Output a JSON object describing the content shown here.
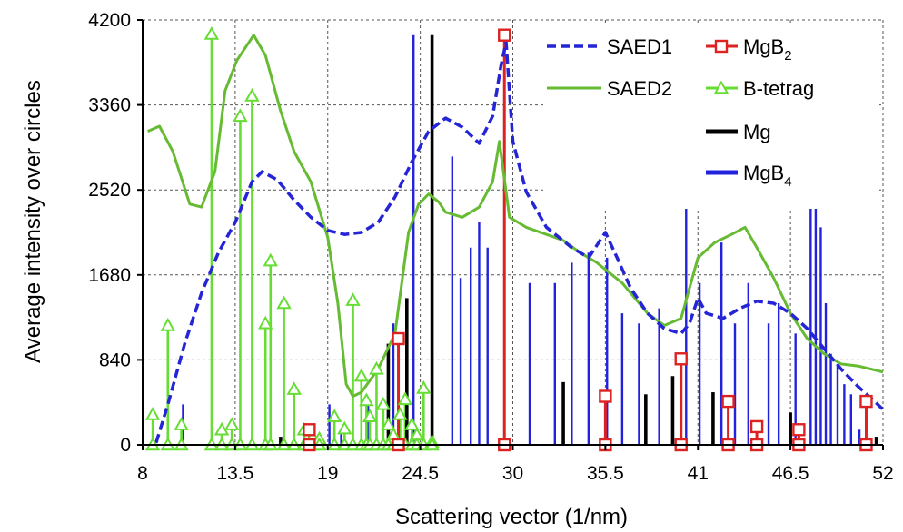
{
  "chart_data": {
    "type": "line",
    "xlabel": "Scattering vector  (1/nm)",
    "ylabel": "Average intensity over circles",
    "xlim": [
      8,
      52
    ],
    "ylim": [
      0,
      4200
    ],
    "xticks": [
      8,
      13.5,
      19,
      24.5,
      30,
      35.5,
      41,
      46.5,
      52
    ],
    "yticks": [
      0,
      840,
      1680,
      2520,
      3360,
      4200
    ],
    "grid": true,
    "legend_position": "top-right",
    "legend_left": [
      {
        "id": "saed1",
        "label": "SAED1"
      },
      {
        "id": "saed2",
        "label": "SAED2"
      }
    ],
    "legend_right": [
      {
        "id": "mgb2",
        "label_main": "MgB",
        "label_sub": "2"
      },
      {
        "id": "btet",
        "label_main": "B-tetrag",
        "label_sub": ""
      },
      {
        "id": "mg",
        "label_main": "Mg",
        "label_sub": ""
      },
      {
        "id": "mgb4",
        "label_main": "MgB",
        "label_sub": "4"
      }
    ],
    "colors": {
      "saed1": "#2525d6",
      "saed2": "#66bb33",
      "mgb2": "#dd2222",
      "btet": "#66dd33",
      "mg": "#000000",
      "mgb4": "#2222dd",
      "grid": "#555555"
    },
    "series": [
      {
        "id": "saed1",
        "style": "dashed-line",
        "points": [
          [
            8.8,
            20
          ],
          [
            9.5,
            400
          ],
          [
            10.5,
            1000
          ],
          [
            11.5,
            1500
          ],
          [
            12.5,
            1900
          ],
          [
            13.5,
            2200
          ],
          [
            14.5,
            2600
          ],
          [
            15.1,
            2700
          ],
          [
            16,
            2620
          ],
          [
            17,
            2420
          ],
          [
            18,
            2250
          ],
          [
            19,
            2120
          ],
          [
            20,
            2080
          ],
          [
            21,
            2100
          ],
          [
            22,
            2200
          ],
          [
            23,
            2450
          ],
          [
            24,
            2800
          ],
          [
            25,
            3100
          ],
          [
            26,
            3230
          ],
          [
            27,
            3140
          ],
          [
            28,
            2980
          ],
          [
            28.8,
            3250
          ],
          [
            29.3,
            3750
          ],
          [
            29.6,
            3980
          ],
          [
            30,
            3000
          ],
          [
            30.8,
            2500
          ],
          [
            32,
            2150
          ],
          [
            33.5,
            1950
          ],
          [
            34.5,
            1850
          ],
          [
            35.5,
            2100
          ],
          [
            36.2,
            1850
          ],
          [
            37,
            1550
          ],
          [
            38,
            1300
          ],
          [
            39,
            1150
          ],
          [
            40,
            1100
          ],
          [
            40.5,
            1200
          ],
          [
            41,
            1450
          ],
          [
            41.5,
            1300
          ],
          [
            42.5,
            1250
          ],
          [
            43.5,
            1350
          ],
          [
            44.5,
            1420
          ],
          [
            45.5,
            1400
          ],
          [
            46.5,
            1300
          ],
          [
            47.5,
            1150
          ],
          [
            48.5,
            950
          ],
          [
            49.5,
            750
          ],
          [
            50.5,
            580
          ],
          [
            51.5,
            430
          ],
          [
            52,
            350
          ]
        ]
      },
      {
        "id": "saed2",
        "style": "solid-line",
        "points": [
          [
            8.3,
            3100
          ],
          [
            9,
            3150
          ],
          [
            9.8,
            2900
          ],
          [
            10.8,
            2380
          ],
          [
            11.5,
            2350
          ],
          [
            12.3,
            2700
          ],
          [
            12.9,
            3500
          ],
          [
            13.6,
            3800
          ],
          [
            14.2,
            3950
          ],
          [
            14.6,
            4050
          ],
          [
            15.3,
            3850
          ],
          [
            16.2,
            3300
          ],
          [
            17,
            2900
          ],
          [
            18,
            2600
          ],
          [
            19,
            2050
          ],
          [
            19.6,
            1400
          ],
          [
            20.1,
            600
          ],
          [
            20.5,
            480
          ],
          [
            21,
            520
          ],
          [
            22,
            750
          ],
          [
            23,
            1100
          ],
          [
            23.8,
            2100
          ],
          [
            24.4,
            2380
          ],
          [
            25,
            2480
          ],
          [
            25.6,
            2400
          ],
          [
            26,
            2300
          ],
          [
            27,
            2250
          ],
          [
            28,
            2350
          ],
          [
            28.8,
            2600
          ],
          [
            29.2,
            3000
          ],
          [
            29.8,
            2250
          ],
          [
            30.8,
            2150
          ],
          [
            32,
            2080
          ],
          [
            33,
            2020
          ],
          [
            34,
            1900
          ],
          [
            35,
            1800
          ],
          [
            36.5,
            1600
          ],
          [
            38,
            1300
          ],
          [
            39,
            1180
          ],
          [
            40,
            1250
          ],
          [
            41,
            1850
          ],
          [
            42,
            2000
          ],
          [
            43,
            2080
          ],
          [
            43.8,
            2150
          ],
          [
            44.5,
            1950
          ],
          [
            45.5,
            1650
          ],
          [
            46.5,
            1300
          ],
          [
            47.5,
            1050
          ],
          [
            48.5,
            900
          ],
          [
            49.5,
            800
          ],
          [
            50.5,
            780
          ],
          [
            51.5,
            740
          ],
          [
            52,
            720
          ]
        ]
      },
      {
        "id": "mgb2",
        "style": "stick-square",
        "points": [
          [
            17.9,
            150
          ],
          [
            23.2,
            1050
          ],
          [
            29.5,
            4050
          ],
          [
            35.5,
            480
          ],
          [
            40,
            850
          ],
          [
            42.8,
            430
          ],
          [
            44.5,
            180
          ],
          [
            47,
            150
          ],
          [
            51,
            430
          ]
        ]
      },
      {
        "id": "btet",
        "style": "stick-triangle",
        "points": [
          [
            8.6,
            300
          ],
          [
            9.5,
            1180
          ],
          [
            10.3,
            200
          ],
          [
            12.1,
            4060
          ],
          [
            12.7,
            150
          ],
          [
            13.3,
            200
          ],
          [
            13.8,
            3250
          ],
          [
            14.5,
            3450
          ],
          [
            15.3,
            1200
          ],
          [
            15.6,
            1820
          ],
          [
            16.4,
            1400
          ],
          [
            17,
            550
          ],
          [
            17.6,
            150
          ],
          [
            18.1,
            80
          ],
          [
            18.5,
            60
          ],
          [
            19.4,
            280
          ],
          [
            20,
            160
          ],
          [
            20.5,
            1430
          ],
          [
            21,
            680
          ],
          [
            21.3,
            440
          ],
          [
            21.5,
            280
          ],
          [
            21.9,
            750
          ],
          [
            22.3,
            400
          ],
          [
            22.6,
            200
          ],
          [
            22.9,
            100
          ],
          [
            23.3,
            300
          ],
          [
            23.6,
            450
          ],
          [
            24,
            200
          ],
          [
            24.3,
            100
          ],
          [
            24.7,
            560
          ],
          [
            25.2,
            30
          ]
        ]
      },
      {
        "id": "mg",
        "style": "stick",
        "points": [
          [
            16.2,
            80
          ],
          [
            22.6,
            1000
          ],
          [
            23.7,
            1450
          ],
          [
            25.2,
            4050
          ],
          [
            33,
            620
          ],
          [
            37.9,
            500
          ],
          [
            39.5,
            680
          ],
          [
            41.9,
            520
          ],
          [
            46.5,
            320
          ],
          [
            51.6,
            80
          ]
        ]
      },
      {
        "id": "mgb4",
        "style": "stick",
        "points": [
          [
            10.4,
            400
          ],
          [
            13.8,
            60
          ],
          [
            19.1,
            400
          ],
          [
            19.8,
            160
          ],
          [
            21.4,
            450
          ],
          [
            22.9,
            1200
          ],
          [
            24.1,
            4050
          ],
          [
            26.4,
            2850
          ],
          [
            26.9,
            1650
          ],
          [
            27.5,
            1950
          ],
          [
            28,
            2200
          ],
          [
            28.5,
            1950
          ],
          [
            31,
            1600
          ],
          [
            32.5,
            1600
          ],
          [
            33.5,
            1800
          ],
          [
            34.5,
            1900
          ],
          [
            35.6,
            1850
          ],
          [
            36.5,
            1300
          ],
          [
            37.5,
            1200
          ],
          [
            38.7,
            1350
          ],
          [
            40.3,
            2450
          ],
          [
            41.1,
            1600
          ],
          [
            42.4,
            2000
          ],
          [
            43.2,
            1200
          ],
          [
            44,
            1600
          ],
          [
            45.2,
            1200
          ],
          [
            45.8,
            1400
          ],
          [
            46.8,
            1100
          ],
          [
            47.7,
            2450
          ],
          [
            48,
            2450
          ],
          [
            48.3,
            2150
          ],
          [
            48.6,
            1400
          ],
          [
            48.9,
            900
          ],
          [
            49.3,
            800
          ],
          [
            49.7,
            600
          ],
          [
            50.1,
            500
          ],
          [
            50.6,
            150
          ]
        ]
      }
    ]
  }
}
